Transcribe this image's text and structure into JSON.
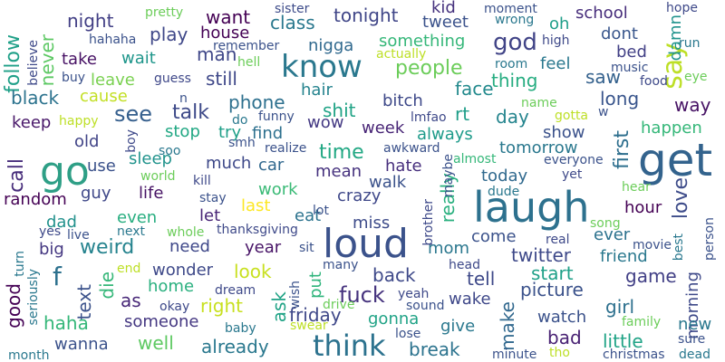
{
  "word_cloud": {
    "words": [
      {
        "text": "go",
        "color": "#2e9f86"
      },
      {
        "text": "get",
        "color": "#33638d"
      },
      {
        "text": "laugh",
        "color": "#2d718e"
      },
      {
        "text": "loud",
        "color": "#3b528b"
      },
      {
        "text": "know",
        "color": "#2a788e"
      },
      {
        "text": "think",
        "color": "#2c728e"
      },
      {
        "text": "god",
        "color": "#414487"
      },
      {
        "text": "say",
        "color": "#bddf26"
      },
      {
        "text": "people",
        "color": "#6ccd5a"
      },
      {
        "text": "fuck",
        "color": "#46337e"
      },
      {
        "text": "see",
        "color": "#355f8d"
      },
      {
        "text": "time",
        "color": "#22a884"
      },
      {
        "text": "love",
        "color": "#3e4c8a"
      },
      {
        "text": "make",
        "color": "#31688e"
      },
      {
        "text": "really",
        "color": "#2ab07f"
      },
      {
        "text": "first",
        "color": "#2e6f8e"
      },
      {
        "text": "call",
        "color": "#472d7b"
      },
      {
        "text": "follow",
        "color": "#1fa088"
      },
      {
        "text": "night",
        "color": "#423f85"
      },
      {
        "text": "want",
        "color": "#440154"
      },
      {
        "text": "tonight",
        "color": "#404688"
      },
      {
        "text": "kid",
        "color": "#46327e"
      },
      {
        "text": "school",
        "color": "#472d7b"
      },
      {
        "text": "class",
        "color": "#2a788e"
      },
      {
        "text": "tweet",
        "color": "#3b528b"
      },
      {
        "text": "never",
        "color": "#5cc863"
      },
      {
        "text": "house",
        "color": "#440154"
      },
      {
        "text": "play",
        "color": "#3f4889"
      },
      {
        "text": "man",
        "color": "#3f4788"
      },
      {
        "text": "something",
        "color": "#35b779"
      },
      {
        "text": "oh",
        "color": "#1f9e89"
      },
      {
        "text": "dont",
        "color": "#39568c"
      },
      {
        "text": "damn",
        "color": "#20938c"
      },
      {
        "text": "bed",
        "color": "#424086"
      },
      {
        "text": "take",
        "color": "#471164"
      },
      {
        "text": "wait",
        "color": "#1f968b"
      },
      {
        "text": "nigga",
        "color": "#30698e"
      },
      {
        "text": "feel",
        "color": "#2a788e"
      },
      {
        "text": "leave",
        "color": "#7ad151"
      },
      {
        "text": "still",
        "color": "#3f4889"
      },
      {
        "text": "thing",
        "color": "#27ad81"
      },
      {
        "text": "saw",
        "color": "#34618d"
      },
      {
        "text": "black",
        "color": "#2c738e"
      },
      {
        "text": "cause",
        "color": "#c2df23"
      },
      {
        "text": "hair",
        "color": "#25838e"
      },
      {
        "text": "face",
        "color": "#238a8d"
      },
      {
        "text": "phone",
        "color": "#2d708e"
      },
      {
        "text": "bitch",
        "color": "#3e4989"
      },
      {
        "text": "long",
        "color": "#39558c"
      },
      {
        "text": "way",
        "color": "#471365"
      },
      {
        "text": "talk",
        "color": "#3e4a89"
      },
      {
        "text": "shit",
        "color": "#20a386"
      },
      {
        "text": "rt",
        "color": "#1f9e89"
      },
      {
        "text": "day",
        "color": "#25858e"
      },
      {
        "text": "wow",
        "color": "#443983"
      },
      {
        "text": "week",
        "color": "#482576"
      },
      {
        "text": "keep",
        "color": "#481769"
      },
      {
        "text": "stop",
        "color": "#22a884"
      },
      {
        "text": "try",
        "color": "#1f9f88"
      },
      {
        "text": "find",
        "color": "#2d708e"
      },
      {
        "text": "always",
        "color": "#1e9b8a"
      },
      {
        "text": "show",
        "color": "#3b528b"
      },
      {
        "text": "happen",
        "color": "#35b779"
      },
      {
        "text": "tomorrow",
        "color": "#2a788e"
      },
      {
        "text": "old",
        "color": "#414487"
      },
      {
        "text": "sleep",
        "color": "#20938c"
      },
      {
        "text": "use",
        "color": "#3b528b"
      },
      {
        "text": "much",
        "color": "#3e4989"
      },
      {
        "text": "car",
        "color": "#31688e"
      },
      {
        "text": "mean",
        "color": "#46327e"
      },
      {
        "text": "hate",
        "color": "#472f7d"
      },
      {
        "text": "today",
        "color": "#30698e"
      },
      {
        "text": "guy",
        "color": "#3f4889"
      },
      {
        "text": "life",
        "color": "#471365"
      },
      {
        "text": "work",
        "color": "#3aba76"
      },
      {
        "text": "walk",
        "color": "#3b528b"
      },
      {
        "text": "crazy",
        "color": "#3f4889"
      },
      {
        "text": "random",
        "color": "#440154"
      },
      {
        "text": "hour",
        "color": "#440154"
      },
      {
        "text": "even",
        "color": "#28ae80"
      },
      {
        "text": "let",
        "color": "#482576"
      },
      {
        "text": "last",
        "color": "#fde725"
      },
      {
        "text": "eat",
        "color": "#2c738e"
      },
      {
        "text": "miss",
        "color": "#3e4c8a"
      },
      {
        "text": "dad",
        "color": "#21918c"
      },
      {
        "text": "come",
        "color": "#3b528b"
      },
      {
        "text": "ever",
        "color": "#2c728e"
      },
      {
        "text": "big",
        "color": "#453882"
      },
      {
        "text": "weird",
        "color": "#25838e"
      },
      {
        "text": "need",
        "color": "#3f4889"
      },
      {
        "text": "year",
        "color": "#481467"
      },
      {
        "text": "mom",
        "color": "#2a778e"
      },
      {
        "text": "twitter",
        "color": "#3e4989"
      },
      {
        "text": "friend",
        "color": "#2a788e"
      },
      {
        "text": "die",
        "color": "#35b779"
      },
      {
        "text": "wonder",
        "color": "#3e4989"
      },
      {
        "text": "look",
        "color": "#c8e020"
      },
      {
        "text": "put",
        "color": "#2fb47c"
      },
      {
        "text": "back",
        "color": "#3e4989"
      },
      {
        "text": "tell",
        "color": "#3e4989"
      },
      {
        "text": "start",
        "color": "#1fa088"
      },
      {
        "text": "game",
        "color": "#424086"
      },
      {
        "text": "f",
        "color": "#2d718e"
      },
      {
        "text": "text",
        "color": "#3b528b"
      },
      {
        "text": "home",
        "color": "#2ab07f"
      },
      {
        "text": "as",
        "color": "#482878"
      },
      {
        "text": "right",
        "color": "#c8e020"
      },
      {
        "text": "ask",
        "color": "#20a386"
      },
      {
        "text": "picture",
        "color": "#3b528b"
      },
      {
        "text": "morning",
        "color": "#3e4989"
      },
      {
        "text": "good",
        "color": "#440154"
      },
      {
        "text": "someone",
        "color": "#453882"
      },
      {
        "text": "friday",
        "color": "#3f4889"
      },
      {
        "text": "wake",
        "color": "#3f4889"
      },
      {
        "text": "girl",
        "color": "#2d708e"
      },
      {
        "text": "haha",
        "color": "#35b779"
      },
      {
        "text": "gonna",
        "color": "#20a386"
      },
      {
        "text": "give",
        "color": "#2a788e"
      },
      {
        "text": "watch",
        "color": "#3b528b"
      },
      {
        "text": "new",
        "color": "#2a788e"
      },
      {
        "text": "well",
        "color": "#5ec962"
      },
      {
        "text": "already",
        "color": "#2a788e"
      },
      {
        "text": "break",
        "color": "#2c738e"
      },
      {
        "text": "bad",
        "color": "#482173"
      },
      {
        "text": "little",
        "color": "#20a386"
      },
      {
        "text": "wanna",
        "color": "#3b528b"
      },
      {
        "text": "pretty",
        "color": "#6ccd5a"
      },
      {
        "text": "sister",
        "color": "#3e4c8a"
      },
      {
        "text": "moment",
        "color": "#3b528b"
      },
      {
        "text": "hope",
        "color": "#3e4989"
      },
      {
        "text": "wrong",
        "color": "#2a788e"
      },
      {
        "text": "hahaha",
        "color": "#3b528b"
      },
      {
        "text": "remember",
        "color": "#3b528b"
      },
      {
        "text": "believe",
        "color": "#3e4989"
      },
      {
        "text": "buy",
        "color": "#3b528b"
      },
      {
        "text": "guess",
        "color": "#3f4889"
      },
      {
        "text": "hell",
        "color": "#6ccd5a"
      },
      {
        "text": "actually",
        "color": "#bddf26"
      },
      {
        "text": "room",
        "color": "#2a788e"
      },
      {
        "text": "high",
        "color": "#3e4989"
      },
      {
        "text": "music",
        "color": "#3b528b"
      },
      {
        "text": "run",
        "color": "#2a788e"
      },
      {
        "text": "food",
        "color": "#3e4989"
      },
      {
        "text": "eye",
        "color": "#6ccd5a"
      },
      {
        "text": "n",
        "color": "#3b528b"
      },
      {
        "text": "happy",
        "color": "#bddf26"
      },
      {
        "text": "do",
        "color": "#2a788e"
      },
      {
        "text": "funny",
        "color": "#3b528b"
      },
      {
        "text": "lmfao",
        "color": "#3e4989"
      },
      {
        "text": "name",
        "color": "#6ccd5a"
      },
      {
        "text": "gotta",
        "color": "#bddf26"
      },
      {
        "text": "w",
        "color": "#3b528b"
      },
      {
        "text": "boy",
        "color": "#3e4989"
      },
      {
        "text": "soo",
        "color": "#2a788e"
      },
      {
        "text": "smh",
        "color": "#3b528b"
      },
      {
        "text": "realize",
        "color": "#3b528b"
      },
      {
        "text": "awkward",
        "color": "#3b528b"
      },
      {
        "text": "almost",
        "color": "#35b779"
      },
      {
        "text": "everyone",
        "color": "#3b528b"
      },
      {
        "text": "yet",
        "color": "#3e4989"
      },
      {
        "text": "maybe",
        "color": "#3b528b"
      },
      {
        "text": "world",
        "color": "#6ccd5a"
      },
      {
        "text": "kill",
        "color": "#3e4989"
      },
      {
        "text": "stay",
        "color": "#3b528b"
      },
      {
        "text": "dude",
        "color": "#2a788e"
      },
      {
        "text": "hear",
        "color": "#6ccd5a"
      },
      {
        "text": "lot",
        "color": "#3b528b"
      },
      {
        "text": "brother",
        "color": "#3e4989"
      },
      {
        "text": "song",
        "color": "#6ccd5a"
      },
      {
        "text": "best",
        "color": "#2a788e"
      },
      {
        "text": "person",
        "color": "#3b528b"
      },
      {
        "text": "yes",
        "color": "#3e4989"
      },
      {
        "text": "live",
        "color": "#3b528b"
      },
      {
        "text": "next",
        "color": "#2a788e"
      },
      {
        "text": "whole",
        "color": "#6ccd5a"
      },
      {
        "text": "thanksgiving",
        "color": "#3e4989"
      },
      {
        "text": "turn",
        "color": "#2a788e"
      },
      {
        "text": "sit",
        "color": "#3b528b"
      },
      {
        "text": "real",
        "color": "#3e4989"
      },
      {
        "text": "movie",
        "color": "#3b528b"
      },
      {
        "text": "end",
        "color": "#bddf26"
      },
      {
        "text": "many",
        "color": "#3b528b"
      },
      {
        "text": "head",
        "color": "#3e4989"
      },
      {
        "text": "seriously",
        "color": "#2a788e"
      },
      {
        "text": "dream",
        "color": "#3e4989"
      },
      {
        "text": "wish",
        "color": "#3b528b"
      },
      {
        "text": "drive",
        "color": "#6ccd5a"
      },
      {
        "text": "yeah",
        "color": "#3e4989"
      },
      {
        "text": "sound",
        "color": "#3b528b"
      },
      {
        "text": "family",
        "color": "#6ccd5a"
      },
      {
        "text": "okay",
        "color": "#3e4989"
      },
      {
        "text": "sure",
        "color": "#3b528b"
      },
      {
        "text": "baby",
        "color": "#2a788e"
      },
      {
        "text": "swear",
        "color": "#bddf26"
      },
      {
        "text": "lose",
        "color": "#3b528b"
      },
      {
        "text": "month",
        "color": "#2a788e"
      },
      {
        "text": "minute",
        "color": "#3b528b"
      },
      {
        "text": "tho",
        "color": "#bddf26"
      },
      {
        "text": "christmas",
        "color": "#3b528b"
      },
      {
        "text": "dead",
        "color": "#2a788e"
      }
    ]
  }
}
